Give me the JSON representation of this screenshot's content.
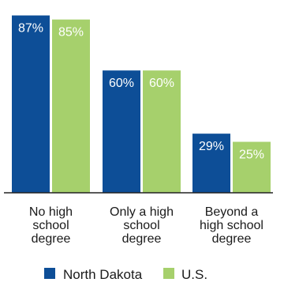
{
  "chart_data": {
    "type": "bar",
    "categories": [
      [
        "No high",
        "school",
        "degree"
      ],
      [
        "Only a high",
        "school",
        "degree"
      ],
      [
        "Beyond a",
        "high school",
        "degree"
      ]
    ],
    "series": [
      {
        "name": "North Dakota",
        "color": "#0d4e97",
        "values": [
          87,
          60,
          29
        ],
        "labels": [
          "87%",
          "60%",
          "29%"
        ]
      },
      {
        "name": "U.S.",
        "color": "#a6d06c",
        "values": [
          85,
          60,
          25
        ],
        "labels": [
          "85%",
          "60%",
          "25%"
        ]
      }
    ],
    "ylim": [
      0,
      100
    ],
    "grid": false,
    "legend_position": "bottom"
  }
}
